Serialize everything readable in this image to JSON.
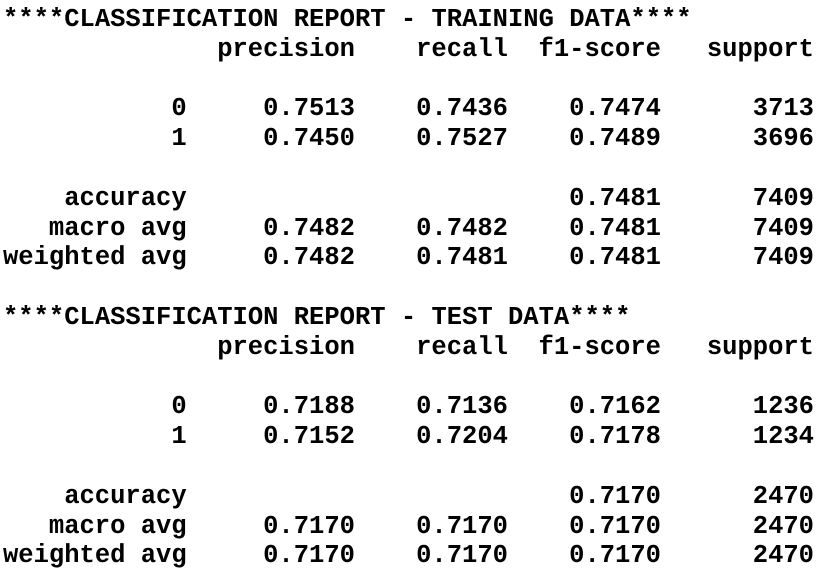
{
  "page": {
    "background_color": "#ffffff",
    "text_color": "#000000"
  },
  "reports": [
    {
      "title": "****CLASSIFICATION REPORT - TRAINING DATA****",
      "columns": [
        "precision",
        "recall",
        "f1-score",
        "support"
      ],
      "class_rows": [
        {
          "label": "0",
          "precision": "0.7513",
          "recall": "0.7436",
          "f1_score": "0.7474",
          "support": "3713"
        },
        {
          "label": "1",
          "precision": "0.7450",
          "recall": "0.7527",
          "f1_score": "0.7489",
          "support": "3696"
        }
      ],
      "summary_rows": [
        {
          "label": "accuracy",
          "precision": "",
          "recall": "",
          "f1_score": "0.7481",
          "support": "7409"
        },
        {
          "label": "macro avg",
          "precision": "0.7482",
          "recall": "0.7482",
          "f1_score": "0.7481",
          "support": "7409"
        },
        {
          "label": "weighted avg",
          "precision": "0.7482",
          "recall": "0.7481",
          "f1_score": "0.7481",
          "support": "7409"
        }
      ]
    },
    {
      "title": "****CLASSIFICATION REPORT - TEST DATA****",
      "columns": [
        "precision",
        "recall",
        "f1-score",
        "support"
      ],
      "class_rows": [
        {
          "label": "0",
          "precision": "0.7188",
          "recall": "0.7136",
          "f1_score": "0.7162",
          "support": "1236"
        },
        {
          "label": "1",
          "precision": "0.7152",
          "recall": "0.7204",
          "f1_score": "0.7178",
          "support": "1234"
        }
      ],
      "summary_rows": [
        {
          "label": "accuracy",
          "precision": "",
          "recall": "",
          "f1_score": "0.7170",
          "support": "2470"
        },
        {
          "label": "macro avg",
          "precision": "0.7170",
          "recall": "0.7170",
          "f1_score": "0.7170",
          "support": "2470"
        },
        {
          "label": "weighted avg",
          "precision": "0.7170",
          "recall": "0.7170",
          "f1_score": "0.7170",
          "support": "2470"
        }
      ]
    }
  ]
}
